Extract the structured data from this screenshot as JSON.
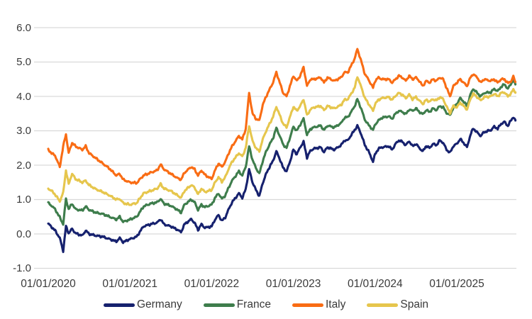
{
  "chart_data": {
    "type": "line",
    "title": "",
    "xlabel": "",
    "ylabel": "",
    "ylim": [
      -1.0,
      6.0
    ],
    "grid": "horizontal",
    "legend_position": "bottom",
    "noise_amplitude": 0.035,
    "colors": {
      "gridline": "#d9d9d9",
      "text": "#3a3a3a",
      "background": "#ffffff"
    },
    "y_tick_values": [
      6,
      5,
      4,
      3,
      2,
      1,
      0,
      -1
    ],
    "y_tick_labels": [
      "6.0",
      "5.0",
      "4.0",
      "3.0",
      "2.0",
      "1.0",
      "0.0",
      "-1.0"
    ],
    "x_tick_values": [
      0,
      12,
      24,
      36,
      48,
      60
    ],
    "x_tick_labels": [
      "01/01/2020",
      "01/01/2021",
      "01/01/2022",
      "01/01/2023",
      "01/01/2024",
      "01/01/2025"
    ],
    "x_unit": "months since 2020-01-01",
    "x": [
      0,
      0.5,
      1,
      1.7,
      2.2,
      2.6,
      3,
      3.5,
      4,
      5,
      5.5,
      6,
      7,
      8,
      9,
      10,
      10.5,
      11,
      12,
      13,
      13.5,
      14,
      15,
      16,
      16.5,
      17,
      18,
      19,
      19.5,
      20,
      21,
      21.5,
      22,
      22.5,
      23,
      24,
      24.5,
      25,
      25.5,
      26,
      26.5,
      27,
      28,
      28.5,
      29,
      29.5,
      30,
      30.5,
      31,
      31.5,
      32,
      32.5,
      33,
      33.5,
      34,
      34.5,
      35,
      35.5,
      36,
      36.5,
      37,
      37.5,
      38,
      38.5,
      39,
      40,
      40.5,
      41,
      42,
      43,
      43.5,
      44,
      44.5,
      45,
      45.4,
      46,
      46.5,
      47,
      47.7,
      48,
      48.5,
      49,
      50,
      50.5,
      51,
      51.5,
      52,
      52.5,
      53,
      53.5,
      54,
      54.5,
      55,
      55.5,
      56,
      56.5,
      57,
      57.5,
      58,
      58.5,
      59,
      59.5,
      60,
      60.5,
      61,
      61.5,
      62,
      62.4,
      63,
      63.5,
      64,
      65,
      65.5,
      66,
      66.5,
      67,
      67.5,
      68,
      68.3,
      68.6
    ],
    "series": [
      {
        "name": "Germany",
        "color": "#16216e",
        "values": [
          0.3,
          0.2,
          0.1,
          -0.12,
          -0.5,
          0.22,
          0.02,
          0.15,
          0.02,
          -0.05,
          0.1,
          0.0,
          -0.05,
          -0.08,
          -0.15,
          -0.22,
          -0.12,
          -0.24,
          -0.15,
          -0.08,
          0.08,
          0.22,
          0.28,
          0.33,
          0.43,
          0.28,
          0.22,
          0.12,
          0.05,
          0.28,
          0.43,
          0.32,
          0.12,
          0.28,
          0.18,
          0.22,
          0.42,
          0.55,
          0.38,
          0.48,
          0.72,
          0.92,
          1.18,
          1.05,
          1.3,
          1.88,
          1.5,
          1.28,
          1.1,
          1.48,
          1.75,
          1.95,
          2.12,
          2.4,
          2.18,
          1.92,
          1.82,
          2.1,
          2.45,
          2.32,
          2.52,
          2.68,
          2.22,
          2.42,
          2.48,
          2.52,
          2.38,
          2.52,
          2.45,
          2.58,
          2.72,
          2.72,
          2.88,
          3.02,
          3.15,
          2.88,
          2.58,
          2.42,
          2.1,
          2.32,
          2.48,
          2.52,
          2.55,
          2.45,
          2.62,
          2.72,
          2.68,
          2.58,
          2.7,
          2.55,
          2.62,
          2.5,
          2.4,
          2.56,
          2.5,
          2.62,
          2.58,
          2.72,
          2.65,
          2.45,
          2.36,
          2.56,
          2.62,
          2.76,
          2.65,
          2.52,
          2.88,
          3.07,
          2.95,
          2.85,
          2.96,
          3.02,
          3.12,
          3.06,
          3.2,
          3.26,
          3.14,
          3.32,
          3.4,
          3.3
        ]
      },
      {
        "name": "France",
        "color": "#3e7d4c",
        "values": [
          0.9,
          0.82,
          0.72,
          0.48,
          0.28,
          1.02,
          0.72,
          0.88,
          0.72,
          0.68,
          0.8,
          0.7,
          0.62,
          0.58,
          0.5,
          0.42,
          0.5,
          0.35,
          0.42,
          0.5,
          0.65,
          0.8,
          0.88,
          0.92,
          1.02,
          0.88,
          0.82,
          0.7,
          0.62,
          0.85,
          1.0,
          0.92,
          0.7,
          0.85,
          0.78,
          0.85,
          1.05,
          1.18,
          1.02,
          1.12,
          1.35,
          1.55,
          1.82,
          1.7,
          1.95,
          2.55,
          2.15,
          1.92,
          1.75,
          2.12,
          2.4,
          2.6,
          2.78,
          3.08,
          2.85,
          2.6,
          2.5,
          2.8,
          3.12,
          3.0,
          3.18,
          3.35,
          2.88,
          3.05,
          3.1,
          3.15,
          3.02,
          3.15,
          3.1,
          3.22,
          3.38,
          3.4,
          3.55,
          3.72,
          3.92,
          3.62,
          3.32,
          3.18,
          3.02,
          3.18,
          3.3,
          3.38,
          3.42,
          3.35,
          3.5,
          3.58,
          3.55,
          3.48,
          3.62,
          3.58,
          3.65,
          3.55,
          3.48,
          3.6,
          3.55,
          3.65,
          3.6,
          3.72,
          3.68,
          3.52,
          3.45,
          3.68,
          3.78,
          3.95,
          3.85,
          3.72,
          4.05,
          4.22,
          4.1,
          4.0,
          4.1,
          4.12,
          4.22,
          4.15,
          4.28,
          4.35,
          4.22,
          4.38,
          4.48,
          4.36
        ]
      },
      {
        "name": "Italy",
        "color": "#f96c14",
        "values": [
          2.45,
          2.35,
          2.28,
          1.95,
          2.55,
          2.9,
          2.35,
          2.65,
          2.55,
          2.45,
          2.55,
          2.35,
          2.2,
          2.05,
          1.9,
          1.7,
          1.75,
          1.58,
          1.5,
          1.48,
          1.6,
          1.7,
          1.78,
          1.85,
          2.02,
          1.88,
          1.75,
          1.62,
          1.58,
          1.78,
          1.95,
          1.88,
          1.7,
          1.85,
          1.72,
          1.6,
          1.85,
          2.05,
          1.95,
          2.1,
          2.35,
          2.55,
          2.85,
          2.75,
          3.05,
          4.1,
          3.5,
          3.35,
          3.3,
          3.75,
          4.0,
          4.2,
          4.4,
          4.7,
          4.4,
          4.1,
          4.0,
          4.3,
          4.6,
          4.45,
          4.6,
          4.85,
          4.3,
          4.5,
          4.5,
          4.55,
          4.4,
          4.55,
          4.45,
          4.55,
          4.7,
          4.7,
          4.9,
          5.1,
          5.38,
          5.0,
          4.65,
          4.5,
          4.25,
          4.45,
          4.55,
          4.5,
          4.5,
          4.4,
          4.5,
          4.6,
          4.55,
          4.45,
          4.6,
          4.5,
          4.55,
          4.45,
          4.3,
          4.45,
          4.4,
          4.5,
          4.45,
          4.55,
          4.5,
          4.25,
          4.0,
          4.3,
          4.4,
          4.5,
          4.4,
          4.3,
          4.55,
          4.65,
          4.55,
          4.4,
          4.5,
          4.45,
          4.5,
          4.4,
          4.5,
          4.5,
          4.38,
          4.45,
          4.58,
          4.42
        ]
      },
      {
        "name": "Spain",
        "color": "#e6c64d",
        "values": [
          1.32,
          1.25,
          1.15,
          0.95,
          1.2,
          1.85,
          1.45,
          1.75,
          1.6,
          1.5,
          1.55,
          1.42,
          1.3,
          1.22,
          1.12,
          1.0,
          1.02,
          0.9,
          0.85,
          0.9,
          1.05,
          1.18,
          1.25,
          1.32,
          1.45,
          1.32,
          1.25,
          1.12,
          1.05,
          1.25,
          1.42,
          1.35,
          1.15,
          1.32,
          1.22,
          1.28,
          1.5,
          1.65,
          1.52,
          1.65,
          1.9,
          2.1,
          2.35,
          2.25,
          2.5,
          3.15,
          2.7,
          2.5,
          2.4,
          2.75,
          3.0,
          3.2,
          3.4,
          3.7,
          3.45,
          3.2,
          3.1,
          3.4,
          3.7,
          3.58,
          3.72,
          3.92,
          3.45,
          3.62,
          3.68,
          3.72,
          3.6,
          3.72,
          3.65,
          3.75,
          3.9,
          3.92,
          4.08,
          4.25,
          4.58,
          4.25,
          3.95,
          3.8,
          3.58,
          3.78,
          3.9,
          3.95,
          3.98,
          3.9,
          4.02,
          4.1,
          4.05,
          3.95,
          4.05,
          3.92,
          3.98,
          3.88,
          3.78,
          3.9,
          3.85,
          3.92,
          3.88,
          3.98,
          3.92,
          3.7,
          3.52,
          3.72,
          3.68,
          3.82,
          3.72,
          3.62,
          3.92,
          4.08,
          3.98,
          3.88,
          3.98,
          4.0,
          4.08,
          4.0,
          4.1,
          4.12,
          4.0,
          4.1,
          4.2,
          4.12
        ]
      }
    ]
  }
}
